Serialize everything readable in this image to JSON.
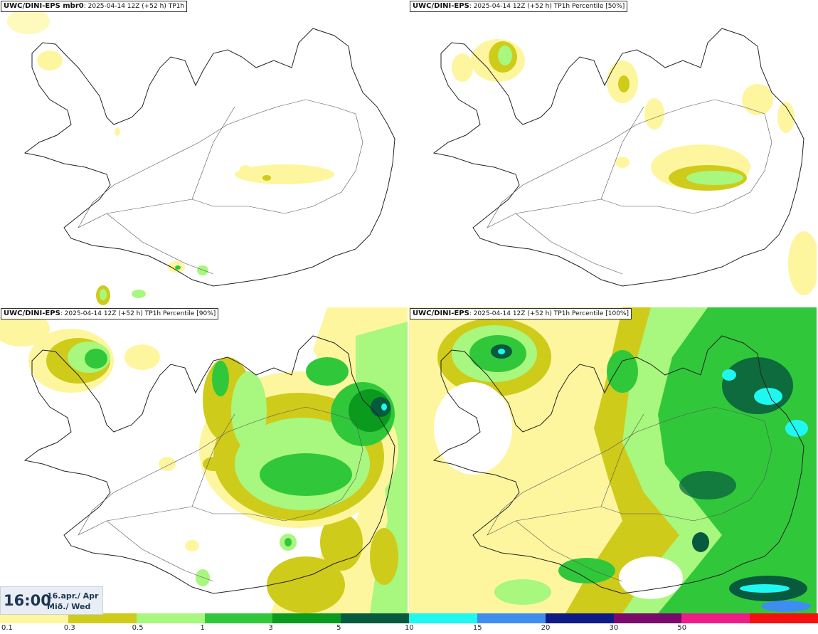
{
  "panels": [
    {
      "id": "p1",
      "model": "UWC/DINI-EPS mbr0",
      "run": ": 2025-04-14 12Z (+52 h)",
      "field": "TP1h"
    },
    {
      "id": "p2",
      "model": "UWC/DINI-EPS",
      "run": ": 2025-04-14 12Z (+52 h)",
      "field": "TP1h Percentile [50%]"
    },
    {
      "id": "p3",
      "model": "UWC/DINI-EPS",
      "run": ": 2025-04-14 12Z (+52 h)",
      "field": "TP1h Percentile [90%]"
    },
    {
      "id": "p4",
      "model": "UWC/DINI-EPS",
      "run": ": 2025-04-14 12Z (+52 h)",
      "field": "TP1h Percentile [100%]"
    }
  ],
  "valid_time": {
    "time": "16:00",
    "date": "16.apr./ Apr",
    "weekday": "Mið./ Wed"
  },
  "legend": {
    "ticks": [
      "0.1",
      "0.3",
      "0.5",
      "1",
      "3",
      "5",
      "10",
      "15",
      "20",
      "30",
      "50"
    ],
    "colors": [
      "#fdf69f",
      "#cfcb1b",
      "#a8f77e",
      "#30c83a",
      "#0a9a1e",
      "#075a3e",
      "#1ef8f0",
      "#3e8ef2",
      "#101a86",
      "#7a0a6c",
      "#ef1b86",
      "#f50f0f"
    ]
  }
}
